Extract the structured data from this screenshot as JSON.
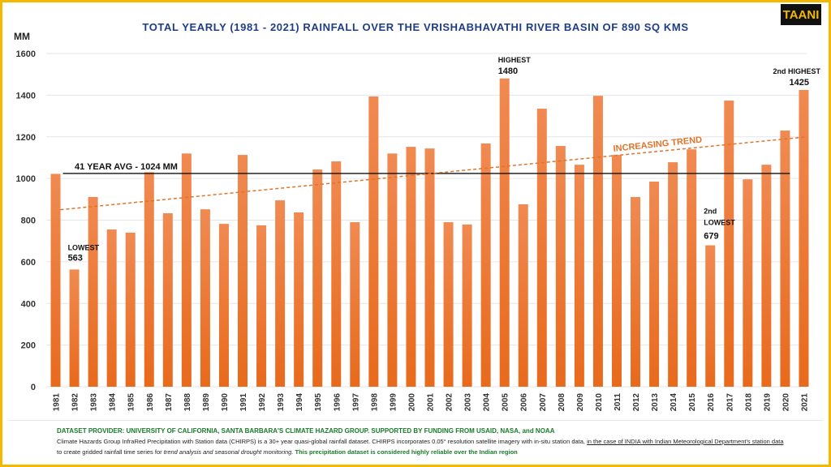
{
  "chart_data": {
    "type": "bar",
    "title": "TOTAL YEARLY (1981 - 2021) RAINFALL OVER THE VRISHABHAVATHI RIVER BASIN OF 890 SQ KMS",
    "ylabel": "MM",
    "xlabel": "",
    "ylim": [
      0,
      1600
    ],
    "yticks": [
      0,
      200,
      400,
      600,
      800,
      1000,
      1200,
      1400,
      1600
    ],
    "grid": true,
    "bar_color": "#f07a2a",
    "categories": [
      "1981",
      "1982",
      "1983",
      "1984",
      "1985",
      "1986",
      "1987",
      "1988",
      "1989",
      "1990",
      "1991",
      "1992",
      "1993",
      "1994",
      "1995",
      "1996",
      "1997",
      "1998",
      "1999",
      "2000",
      "2001",
      "2002",
      "2003",
      "2004",
      "2005",
      "2006",
      "2007",
      "2008",
      "2009",
      "2010",
      "2011",
      "2012",
      "2013",
      "2014",
      "2015",
      "2016",
      "2017",
      "2018",
      "2019",
      "2020",
      "2021"
    ],
    "values": [
      1022,
      563,
      911,
      755,
      740,
      1030,
      833,
      1120,
      852,
      782,
      1113,
      775,
      895,
      837,
      1043,
      1082,
      790,
      1394,
      1120,
      1152,
      1144,
      790,
      779,
      1168,
      1480,
      876,
      1335,
      1156,
      1066,
      1397,
      1113,
      911,
      985,
      1078,
      1140,
      679,
      1374,
      996,
      1066,
      1230,
      1425
    ],
    "average": {
      "value": 1024,
      "label": "41 YEAR AVG - 1024 MM",
      "color": "#111111"
    },
    "trend": {
      "start": 850,
      "end": 1200,
      "label": "INCREASING TREND",
      "color": "#e0742a"
    },
    "annotations": [
      {
        "year": "1982",
        "label": "LOWEST",
        "value": "563"
      },
      {
        "year": "2005",
        "label": "HIGHEST",
        "value": "1480"
      },
      {
        "year": "2016",
        "label": "2nd LOWEST",
        "value": "679"
      },
      {
        "year": "2021",
        "label": "2nd HIGHEST",
        "value": "1425"
      }
    ]
  },
  "logo": "TAANI",
  "footer": {
    "provider": "DATASET PROVIDER: UNIVERSITY OF CALIFORNIA, SANTA BARBARA'S CLIMATE HAZARD GROUP. SUPPORTED BY FUNDING FROM USAID, NASA, and NOAA",
    "text1": "Climate Hazards Group InfraRed Precipitation with Station data (CHIRPS) is a 30+ year quasi-global rainfall dataset. CHIRPS incorporates 0.05° resolution satellite imagery with in-situ station data, ",
    "underlined": "in the case of INDIA with Indian Meteorological Department's station data",
    "text2": " to create gridded rainfall time series for ",
    "italic": "trend analysis and seasonal drought monitoring.",
    "green": " This precipitation dataset is considered highly reliable over the Indian region"
  }
}
